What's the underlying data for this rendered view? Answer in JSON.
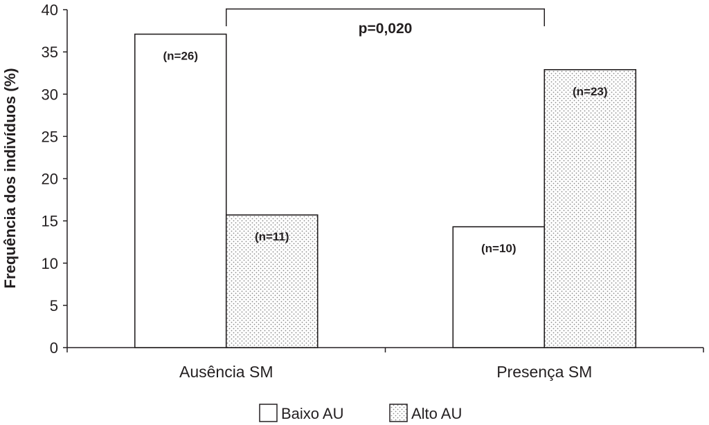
{
  "chart_data": {
    "type": "bar",
    "categories": [
      "Ausência SM",
      "Presença SM"
    ],
    "series": [
      {
        "name": "Baixo AU",
        "values": [
          37.1,
          14.3
        ],
        "labels": [
          "(n=26)",
          "(n=10)"
        ],
        "fill": "plain",
        "color": "#ffffff"
      },
      {
        "name": "Alto AU",
        "values": [
          15.7,
          32.9
        ],
        "labels": [
          "(n=11)",
          "(n=23)"
        ],
        "fill": "dotted",
        "color": "#ffffff"
      }
    ],
    "xlabel": "",
    "ylabel": "Frequência dos indivíduos (%)",
    "ylim": [
      0,
      40
    ],
    "yticks": [
      "0",
      "5",
      "10",
      "15",
      "20",
      "25",
      "30",
      "35",
      "40"
    ],
    "annotation": {
      "text": "p=0,020",
      "spans": [
        "Ausência SM",
        "Presença SM"
      ]
    },
    "grid": false,
    "legend_position": "bottom-center",
    "colors": {
      "stroke": "#231f20",
      "dot": "#8a8a8a",
      "background": "#ffffff"
    }
  }
}
